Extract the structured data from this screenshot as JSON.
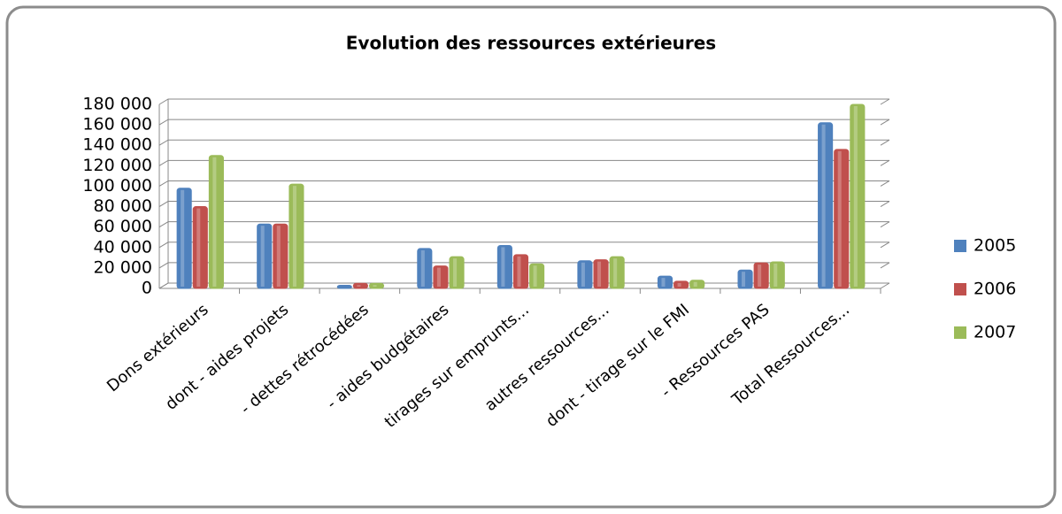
{
  "chart_data": {
    "type": "bar",
    "title": "Evolution des ressources extérieures",
    "categories": [
      "Dons extérieurs",
      "dont - aides projets",
      "- dettes rétrocédées",
      "- aides budgétaires",
      "tirages sur emprunts...",
      "autres ressources...",
      "dont - tirage sur le FMI",
      "- Ressources PAS",
      "Total Ressources..."
    ],
    "series": [
      {
        "name": "2005",
        "color": "#4f81bd",
        "values": [
          98000,
          63000,
          3000,
          39000,
          42000,
          27000,
          12000,
          18000,
          162000
        ]
      },
      {
        "name": "2006",
        "color": "#c0504d",
        "values": [
          80000,
          63000,
          5000,
          22000,
          33000,
          28000,
          7000,
          25000,
          136000
        ]
      },
      {
        "name": "2007",
        "color": "#9bbb59",
        "values": [
          130000,
          102000,
          5000,
          31000,
          24000,
          31000,
          8000,
          26000,
          180000
        ]
      }
    ],
    "ylim": [
      0,
      180000
    ],
    "yticks": [
      0,
      {
        "value": 20000,
        "label": "20 000"
      },
      {
        "value": 40000,
        "label": "40 000"
      },
      {
        "value": 60000,
        "label": "60 000"
      },
      {
        "value": 80000,
        "label": "80 000"
      },
      {
        "value": 100000,
        "label": "100 000"
      },
      {
        "value": 120000,
        "label": "120 000"
      },
      {
        "value": 140000,
        "label": "140 000"
      },
      {
        "value": 160000,
        "label": "160 000"
      },
      {
        "value": 180000,
        "label": "180 000"
      }
    ],
    "grid": true,
    "legend": "right"
  }
}
